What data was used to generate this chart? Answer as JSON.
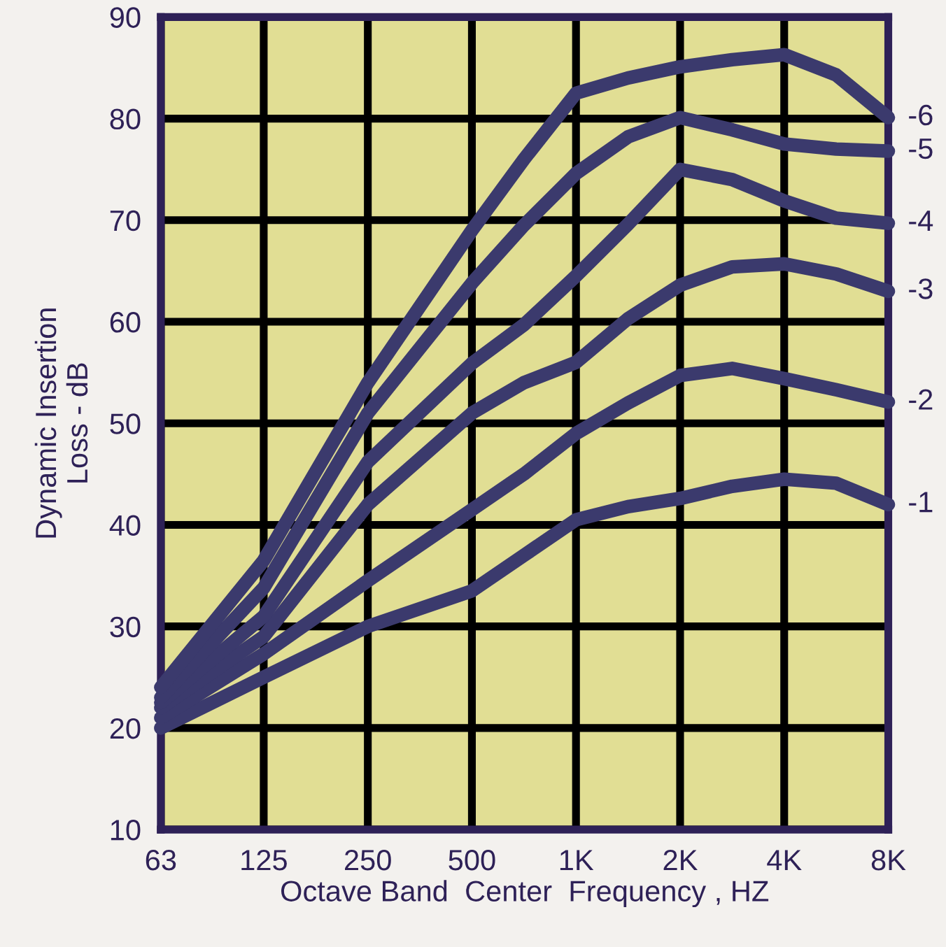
{
  "chart_data": {
    "type": "line",
    "xlabel": "Octave Band  Center  Frequency , HZ",
    "ylabel": "Dynamic Insertion\nLoss - dB",
    "x": [
      63,
      125,
      250,
      500,
      707,
      1000,
      1414,
      2000,
      2828,
      4000,
      5657,
      8000
    ],
    "series": [
      {
        "name": "-1",
        "color": "#3b3a6d",
        "values": [
          20,
          25,
          30,
          33.5,
          37,
          40.5,
          41.8,
          42.6,
          43.8,
          44.5,
          44.1,
          42
        ]
      },
      {
        "name": "-2",
        "color": "#3b3a6d",
        "values": [
          21,
          27.3,
          34.5,
          41.5,
          45,
          49,
          52,
          54.7,
          55.4,
          54.4,
          53.3,
          52.1
        ]
      },
      {
        "name": "-3",
        "color": "#3b3a6d",
        "values": [
          22,
          29,
          42,
          51,
          54,
          56,
          60.3,
          63.6,
          65.4,
          65.7,
          64.7,
          63
        ]
      },
      {
        "name": "-4",
        "color": "#3b3a6d",
        "values": [
          22.5,
          31,
          46.2,
          55.9,
          59.7,
          64.5,
          69.6,
          75,
          74,
          71.9,
          70.2,
          69.7
        ]
      },
      {
        "name": "-5",
        "color": "#3b3a6d",
        "values": [
          23,
          33.8,
          51,
          63.8,
          69.5,
          74.6,
          78.2,
          80.1,
          78.9,
          77.5,
          77,
          76.8
        ]
      },
      {
        "name": "-6",
        "color": "#3b3a6d",
        "values": [
          24,
          36.5,
          54,
          69,
          76,
          82.5,
          84,
          85.1,
          85.8,
          86.3,
          84.3,
          80.1
        ]
      }
    ],
    "log": "x",
    "xlim": [
      63,
      8000
    ],
    "xticks": [
      63,
      125,
      250,
      500,
      {
        "value": 1000,
        "label": "1K"
      },
      {
        "value": 2000,
        "label": "2K"
      },
      {
        "value": 4000,
        "label": "4K"
      },
      {
        "value": 8000,
        "label": "8K"
      }
    ],
    "ylim": [
      10,
      90
    ],
    "yticks": [
      10,
      20,
      30,
      40,
      50,
      60,
      70,
      80,
      90
    ],
    "grid": true,
    "legend": false,
    "marker": "none",
    "line_style": "solid"
  }
}
